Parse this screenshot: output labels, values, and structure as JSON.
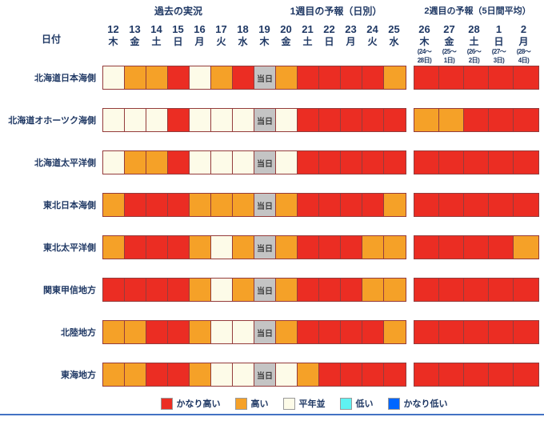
{
  "page": {
    "section_headers": {
      "past": "過去の実況",
      "week1": "1週目の予報（日別）",
      "week2": "2週目の予報（5日間平均）"
    },
    "date_label": "日付",
    "today_label": "当日",
    "legend": [
      {
        "label": "かなり高い",
        "color": "#EB2D23"
      },
      {
        "label": "高い",
        "color": "#F5A128"
      },
      {
        "label": "平年並",
        "color": "#FDFBE8"
      },
      {
        "label": "低い",
        "color": "#5FF2F2"
      },
      {
        "label": "かなり低い",
        "color": "#0066FF"
      }
    ]
  },
  "chart_data": {
    "type": "heatmap",
    "legend_position": "bottom",
    "value_scale": {
      "vh": "かなり高い",
      "h": "高い",
      "n": "平年並",
      "low": "低い",
      "vlow": "かなり低い",
      "today": "当日"
    },
    "cell_colors": {
      "vh": "#EB2D23",
      "h": "#F5A128",
      "n": "#FDFBE8",
      "low": "#5FF2F2",
      "vlow": "#0066FF",
      "today": "#C4C4C4"
    },
    "columns_week1": [
      {
        "date": "12",
        "dow": "木"
      },
      {
        "date": "13",
        "dow": "金"
      },
      {
        "date": "14",
        "dow": "土"
      },
      {
        "date": "15",
        "dow": "日"
      },
      {
        "date": "16",
        "dow": "月"
      },
      {
        "date": "17",
        "dow": "火"
      },
      {
        "date": "18",
        "dow": "水"
      },
      {
        "date": "19",
        "dow": "木"
      },
      {
        "date": "20",
        "dow": "金"
      },
      {
        "date": "21",
        "dow": "土"
      },
      {
        "date": "22",
        "dow": "日"
      },
      {
        "date": "23",
        "dow": "月"
      },
      {
        "date": "24",
        "dow": "火"
      },
      {
        "date": "25",
        "dow": "水"
      }
    ],
    "columns_week2": [
      {
        "date": "26",
        "dow": "木",
        "range": "(24～\n28日)"
      },
      {
        "date": "27",
        "dow": "金",
        "range": "(25～\n1日)"
      },
      {
        "date": "28",
        "dow": "土",
        "range": "(26～\n2日)"
      },
      {
        "date": "1",
        "dow": "日",
        "range": "(27～\n3日)"
      },
      {
        "date": "2",
        "dow": "月",
        "range": "(28～\n4日)"
      }
    ],
    "rows": [
      {
        "region": "北海道日本海側",
        "week1": [
          "n",
          "h",
          "h",
          "vh",
          "n",
          "h",
          "vh",
          "today",
          "h",
          "vh",
          "vh",
          "vh",
          "vh",
          "h"
        ],
        "week2": [
          "vh",
          "vh",
          "vh",
          "vh",
          "vh"
        ]
      },
      {
        "region": "北海道オホーツク海側",
        "week1": [
          "n",
          "n",
          "n",
          "vh",
          "n",
          "n",
          "n",
          "today",
          "n",
          "vh",
          "vh",
          "vh",
          "vh",
          "vh"
        ],
        "week2": [
          "h",
          "h",
          "vh",
          "vh",
          "vh"
        ]
      },
      {
        "region": "北海道太平洋側",
        "week1": [
          "n",
          "h",
          "h",
          "vh",
          "n",
          "n",
          "n",
          "today",
          "n",
          "vh",
          "vh",
          "vh",
          "vh",
          "vh"
        ],
        "week2": [
          "vh",
          "vh",
          "vh",
          "vh",
          "vh"
        ]
      },
      {
        "region": "東北日本海側",
        "week1": [
          "h",
          "vh",
          "vh",
          "vh",
          "h",
          "h",
          "h",
          "today",
          "h",
          "vh",
          "vh",
          "vh",
          "vh",
          "h"
        ],
        "week2": [
          "vh",
          "vh",
          "vh",
          "vh",
          "vh"
        ]
      },
      {
        "region": "東北太平洋側",
        "week1": [
          "h",
          "vh",
          "vh",
          "vh",
          "h",
          "n",
          "h",
          "today",
          "h",
          "vh",
          "vh",
          "vh",
          "h",
          "h"
        ],
        "week2": [
          "vh",
          "vh",
          "vh",
          "vh",
          "h"
        ]
      },
      {
        "region": "関東甲信地方",
        "week1": [
          "vh",
          "vh",
          "vh",
          "vh",
          "h",
          "n",
          "h",
          "today",
          "h",
          "vh",
          "vh",
          "vh",
          "h",
          "h"
        ],
        "week2": [
          "vh",
          "vh",
          "vh",
          "vh",
          "vh"
        ]
      },
      {
        "region": "北陸地方",
        "week1": [
          "h",
          "h",
          "vh",
          "vh",
          "h",
          "n",
          "n",
          "today",
          "h",
          "vh",
          "vh",
          "vh",
          "vh",
          "h"
        ],
        "week2": [
          "vh",
          "vh",
          "vh",
          "vh",
          "vh"
        ]
      },
      {
        "region": "東海地方",
        "week1": [
          "h",
          "h",
          "vh",
          "vh",
          "h",
          "n",
          "n",
          "today",
          "n",
          "h",
          "vh",
          "vh",
          "vh",
          "vh"
        ],
        "week2": [
          "vh",
          "vh",
          "vh",
          "vh",
          "vh"
        ]
      }
    ]
  }
}
